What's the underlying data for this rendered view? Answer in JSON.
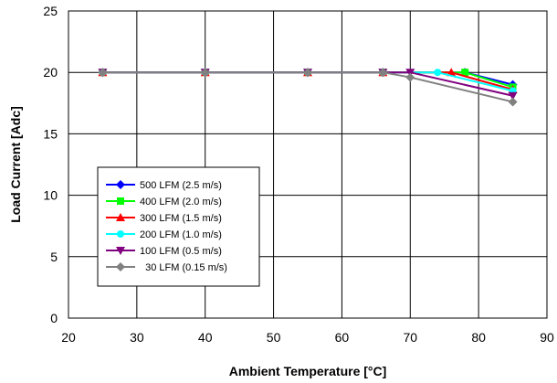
{
  "chart_data": {
    "type": "line",
    "xlabel": "Ambient Temperature [°C]",
    "ylabel": "Load Current  [Adc]",
    "xlim": [
      20,
      90
    ],
    "ylim": [
      0,
      25
    ],
    "xticks": [
      "20",
      "30",
      "40",
      "50",
      "60",
      "70",
      "80",
      "90"
    ],
    "yticks": [
      "0",
      "5",
      "10",
      "15",
      "20",
      "25"
    ],
    "grid": true,
    "legend_position": "lower-left",
    "series": [
      {
        "name": "500 LFM (2.5 m/s)",
        "color": "#0000ff",
        "marker": "diamond",
        "x": [
          25,
          40,
          55,
          66,
          78,
          85
        ],
        "y": [
          20,
          20,
          20,
          20,
          20,
          19
        ]
      },
      {
        "name": "400 LFM (2.0 m/s)",
        "color": "#00ff00",
        "marker": "square",
        "x": [
          25,
          40,
          55,
          66,
          78,
          85
        ],
        "y": [
          20,
          20,
          20,
          20,
          20,
          18.8
        ]
      },
      {
        "name": "300 LFM (1.5 m/s)",
        "color": "#ff0000",
        "marker": "triangle-up",
        "x": [
          25,
          40,
          55,
          66,
          76,
          85
        ],
        "y": [
          20,
          20,
          20,
          20,
          20,
          18.6
        ]
      },
      {
        "name": "200 LFM (1.0 m/s)",
        "color": "#00ffff",
        "marker": "circle",
        "x": [
          25,
          40,
          55,
          66,
          74,
          85
        ],
        "y": [
          20,
          20,
          20,
          20,
          20,
          18.5
        ]
      },
      {
        "name": "100 LFM (0.5 m/s)",
        "color": "#800080",
        "marker": "triangle-down",
        "x": [
          25,
          40,
          55,
          66,
          70,
          85
        ],
        "y": [
          20,
          20,
          20,
          20,
          20,
          18.1
        ]
      },
      {
        "name": "  30 LFM (0.15 m/s)",
        "color": "#808080",
        "marker": "diamond",
        "x": [
          25,
          40,
          55,
          66,
          70,
          85
        ],
        "y": [
          20,
          20,
          20,
          20,
          19.6,
          17.6
        ]
      }
    ]
  }
}
